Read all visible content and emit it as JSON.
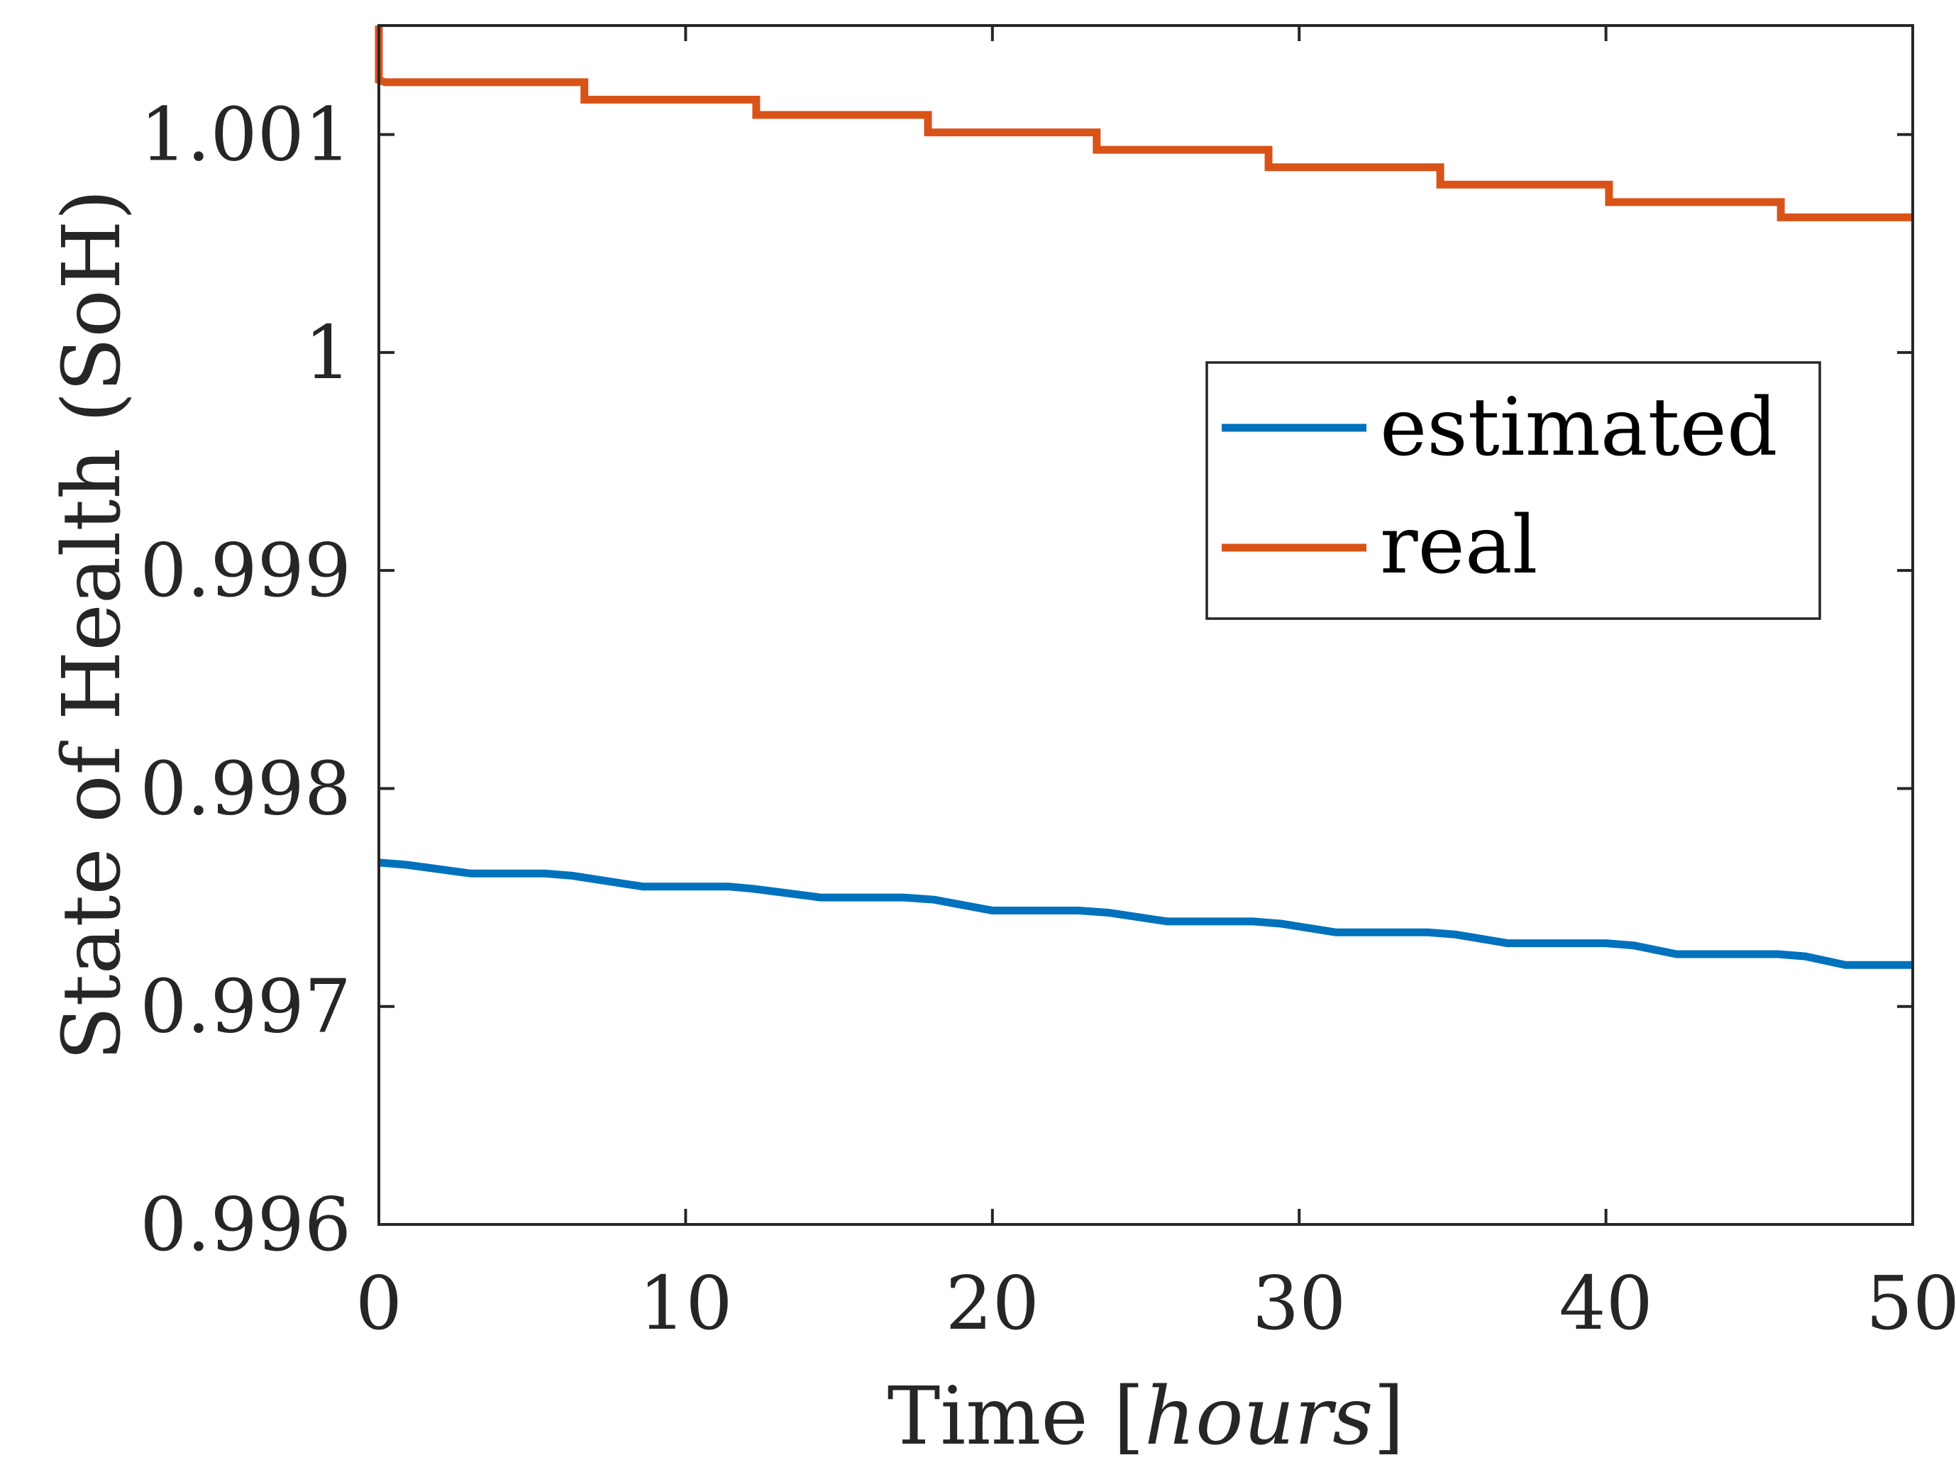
{
  "chart_data": {
    "type": "line",
    "title": "",
    "xlabel_prefix": "Time ",
    "xlabel_unit": "hours",
    "xlabel": "Time [hours]",
    "ylabel": "State of Health (SoH)",
    "xlim": [
      0,
      50
    ],
    "ylim": [
      0.996,
      1.0015
    ],
    "xticks": [
      0,
      10,
      20,
      30,
      40,
      50
    ],
    "xtick_labels": [
      "0",
      "10",
      "20",
      "30",
      "40",
      "50"
    ],
    "yticks": [
      0.996,
      0.997,
      0.998,
      0.999,
      1.0,
      1.001
    ],
    "ytick_labels": [
      "0.996",
      "0.997",
      "0.998",
      "0.999",
      "1",
      "1.001"
    ],
    "legend_position": "upper-right",
    "series": [
      {
        "name": "estimated",
        "color": "#0072BD",
        "x": [
          0,
          0.9,
          3.0,
          5.4,
          6.3,
          8.6,
          11.4,
          12.2,
          14.4,
          17.1,
          18.1,
          20.0,
          22.8,
          23.8,
          25.7,
          28.5,
          29.4,
          31.2,
          34.2,
          35.1,
          36.8,
          40.0,
          40.9,
          42.3,
          45.6,
          46.5,
          47.8,
          50
        ],
        "values": [
          0.99766,
          0.99765,
          0.99761,
          0.99761,
          0.9976,
          0.99755,
          0.99755,
          0.99754,
          0.9975,
          0.9975,
          0.99749,
          0.99744,
          0.99744,
          0.99743,
          0.99739,
          0.99739,
          0.99738,
          0.99734,
          0.99734,
          0.99733,
          0.99729,
          0.99729,
          0.99728,
          0.99724,
          0.99724,
          0.99723,
          0.99719,
          0.99719
        ]
      },
      {
        "name": "real",
        "color": "#D95319",
        "x": [
          0,
          0,
          0.2,
          6.7,
          6.7,
          12.3,
          12.3,
          17.9,
          17.9,
          23.4,
          23.4,
          29.0,
          29.0,
          34.6,
          34.6,
          40.1,
          40.1,
          45.7,
          45.7,
          50
        ],
        "values": [
          1.0015,
          1.00125,
          1.00124,
          1.00124,
          1.00116,
          1.00116,
          1.00109,
          1.00109,
          1.00101,
          1.00101,
          1.00093,
          1.00093,
          1.00085,
          1.00085,
          1.00077,
          1.00077,
          1.00069,
          1.00069,
          1.00062,
          1.00062
        ]
      }
    ]
  }
}
